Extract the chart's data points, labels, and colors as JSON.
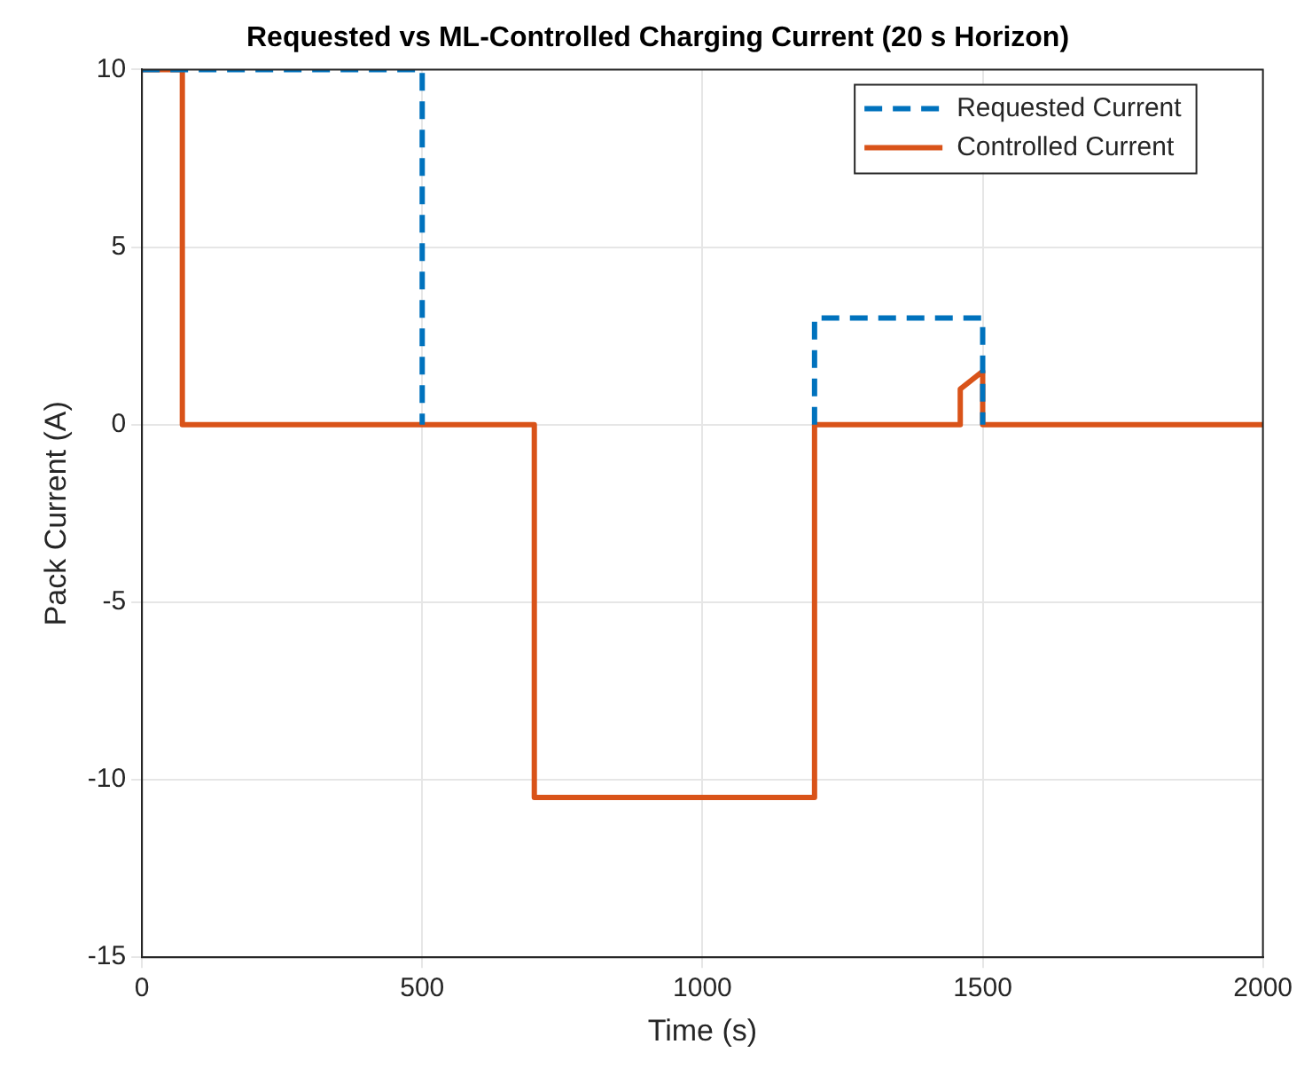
{
  "chart_data": {
    "type": "line",
    "title": "Requested vs ML-Controlled Charging Current (20 s Horizon)",
    "xlabel": "Time (s)",
    "ylabel": "Pack Current (A)",
    "series": [
      {
        "name": "Requested Current",
        "color": "#0072bd",
        "line_style": "dashed",
        "x": [
          0,
          500,
          500,
          null,
          1200,
          1200,
          1500,
          1500
        ],
        "values": [
          10,
          10,
          0,
          null,
          0,
          3,
          3,
          0
        ]
      },
      {
        "name": "Controlled Current",
        "color": "#d95319",
        "line_style": "solid",
        "x": [
          0,
          72,
          72,
          700,
          700,
          1200,
          1200,
          1460,
          1460,
          1500,
          1500,
          2000
        ],
        "values": [
          10,
          10,
          0,
          0,
          -10.5,
          -10.5,
          0,
          0,
          1,
          1.5,
          0,
          0
        ]
      }
    ],
    "xlim": [
      0,
      2000
    ],
    "xticks": [
      0,
      500,
      1000,
      1500,
      2000
    ],
    "ylim": [
      -15,
      10
    ],
    "yticks": [
      -15,
      -10,
      -5,
      0,
      5,
      10
    ],
    "grid": true,
    "legend": "top right",
    "marker": "none"
  }
}
